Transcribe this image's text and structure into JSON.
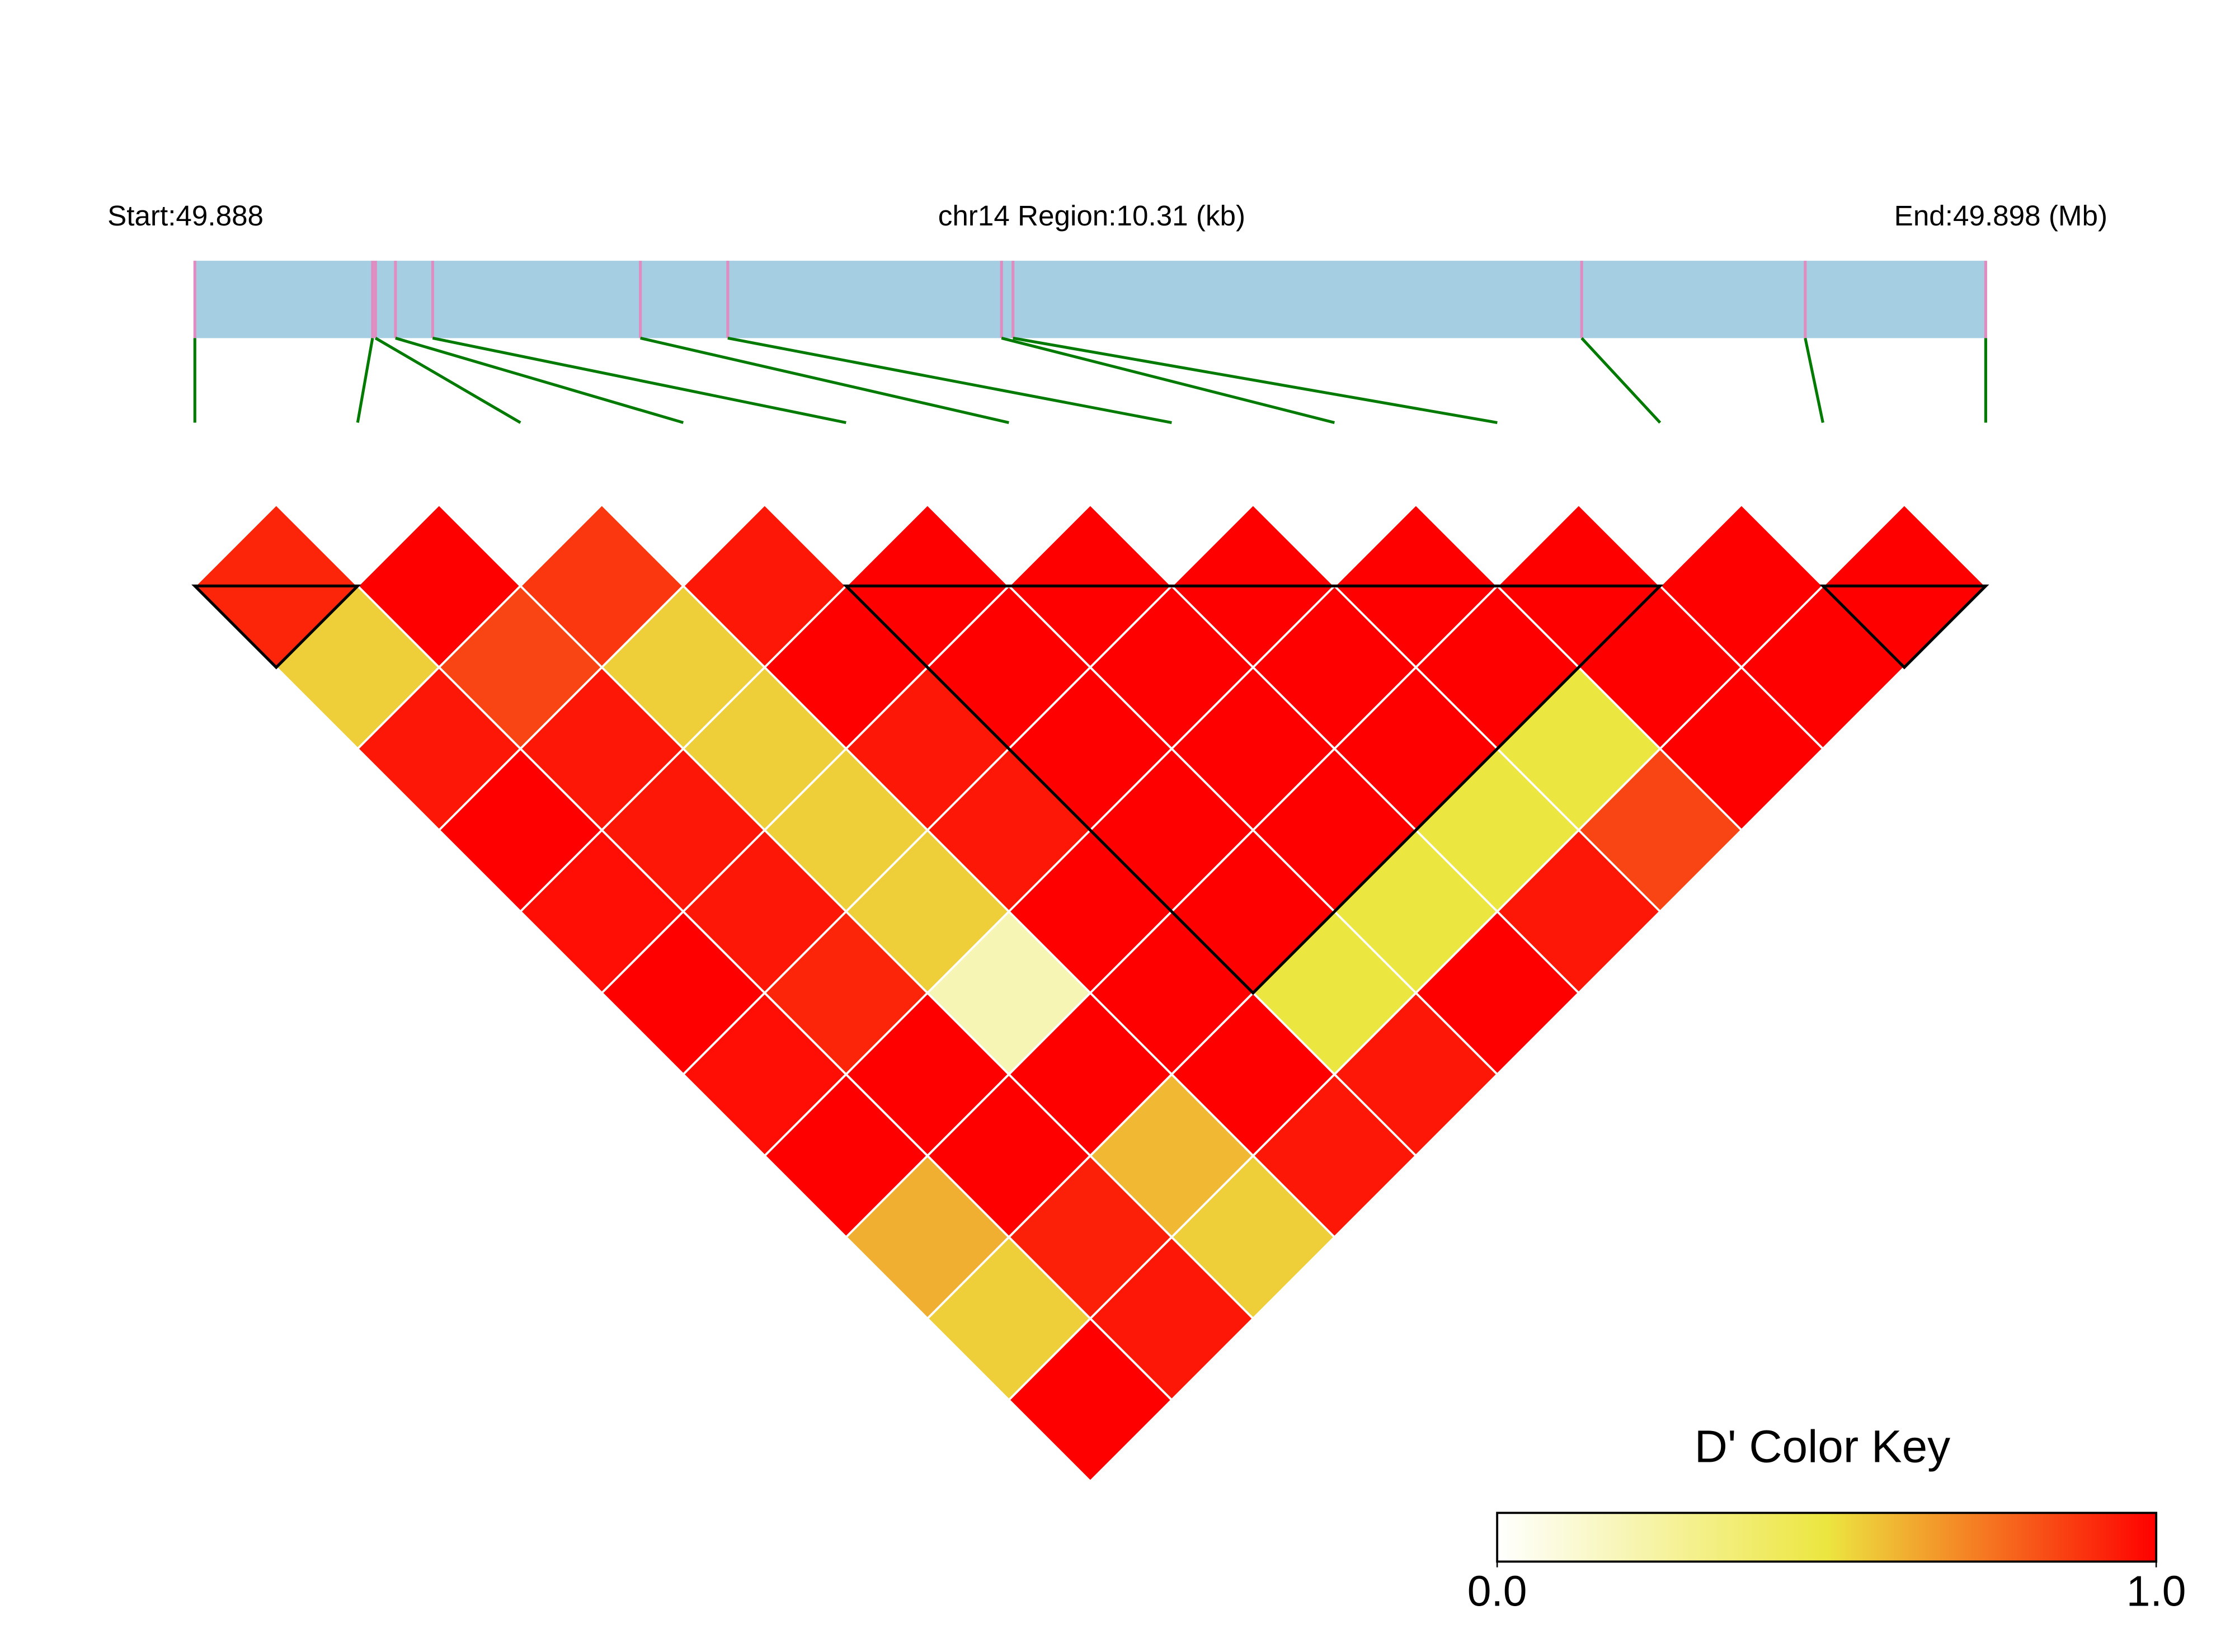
{
  "chart_data": {
    "type": "ld_heatmap",
    "start_label": "Start:49.888",
    "region_label": "chr14 Region:10.31 (kb)",
    "end_label": "End:49.898 (Mb)",
    "xlim": [
      49.888,
      49.89831
    ],
    "snp_positions": [
      49.888,
      49.889023,
      49.88904,
      49.889155,
      49.889369,
      49.890565,
      49.891068,
      49.892644,
      49.89271,
      49.895984,
      49.897271,
      49.89831
    ],
    "dprime": [
      [
        0.92,
        1,
        0.88,
        0.95,
        1,
        1,
        1,
        1,
        1,
        1,
        1
      ],
      [
        0.55,
        0.85,
        0.55,
        1,
        1,
        1,
        1,
        1,
        1,
        1
      ],
      [
        0.95,
        0.95,
        0.55,
        0.95,
        1,
        1,
        1,
        0.5,
        1
      ],
      [
        1,
        0.95,
        0.55,
        0.95,
        1,
        1,
        0.5,
        0.85
      ],
      [
        0.97,
        0.95,
        0.55,
        1,
        1,
        0.5,
        0.95
      ],
      [
        1,
        0.92,
        0.2,
        1,
        0.5,
        1
      ],
      [
        0.97,
        1,
        1,
        1,
        0.95
      ],
      [
        1,
        1,
        0.6,
        0.95
      ],
      [
        0.62,
        0.93,
        0.55
      ],
      [
        0.55,
        0.95
      ],
      [
        1
      ]
    ],
    "blocks": [
      [
        0,
        1
      ],
      [
        4,
        9
      ],
      [
        10,
        11
      ]
    ],
    "color_scale": [
      "#ffffff",
      "#ece640",
      "#ff0000"
    ],
    "key_title": "D' Color Key",
    "key_lim": [
      0,
      1
    ],
    "key_ticks": [
      {
        "value": 0,
        "label": "0.0"
      },
      {
        "value": 1,
        "label": "1.0"
      }
    ],
    "bar_color": "#a6cee3",
    "snp_color": "#e08cc0",
    "connector_color": "#007a00"
  }
}
